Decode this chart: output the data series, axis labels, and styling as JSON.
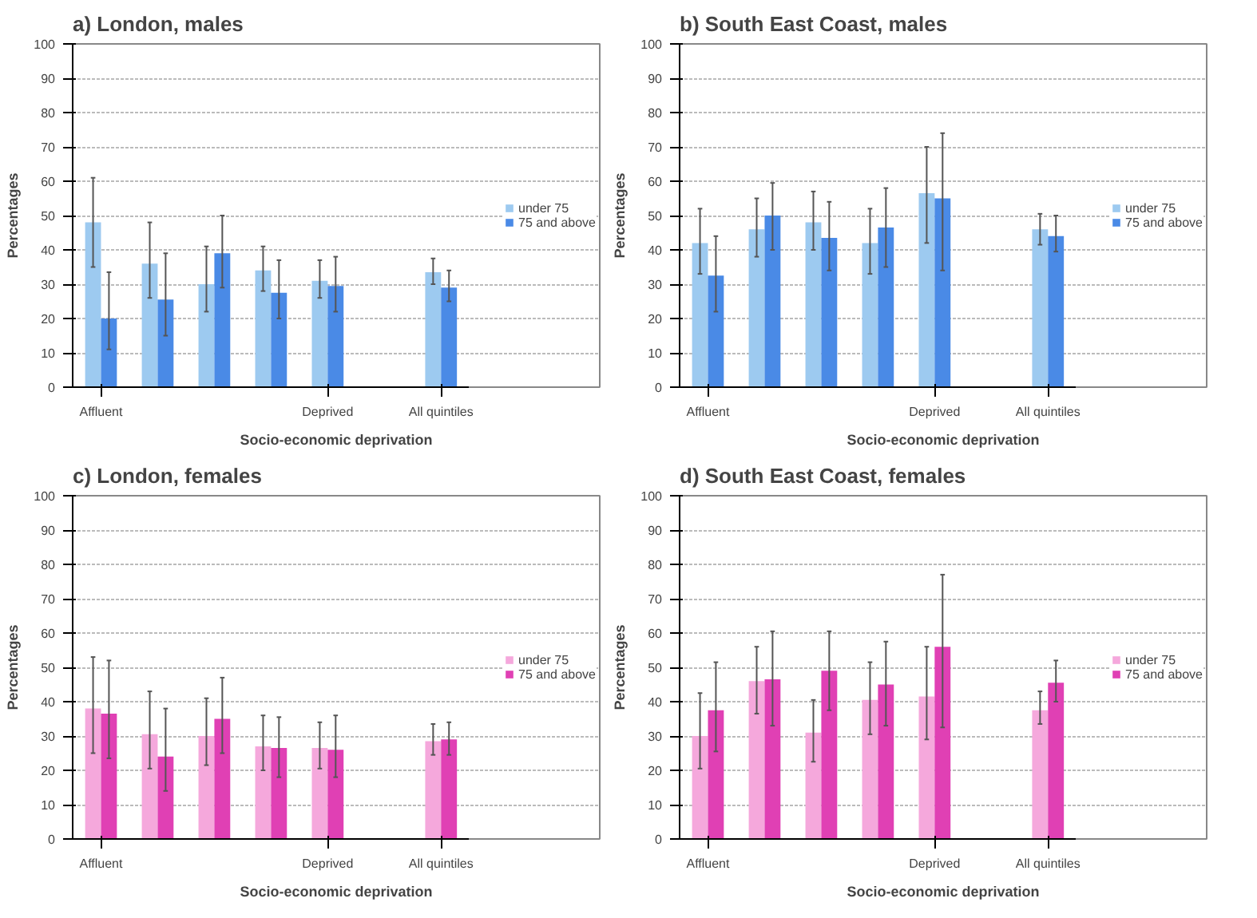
{
  "chart_data": [
    {
      "type": "bar",
      "title": "a) London, males",
      "xlabel": "Socio-economic deprivation",
      "ylabel": "Percentages",
      "categories": [
        "Affluent",
        null,
        null,
        null,
        "Deprived",
        null,
        "All quintiles"
      ],
      "ylim": [
        0,
        100
      ],
      "yticks": [
        0,
        10,
        20,
        30,
        40,
        50,
        60,
        70,
        80,
        90,
        100
      ],
      "grid": "y",
      "legend": "right",
      "series": [
        {
          "name": "under 75",
          "color": "#9dcaf0",
          "values": [
            48,
            36,
            30,
            34,
            31,
            null,
            33.5
          ],
          "errors": [
            [
              35,
              61
            ],
            [
              26,
              48
            ],
            [
              22,
              41
            ],
            [
              28,
              41
            ],
            [
              26,
              37
            ],
            null,
            [
              30,
              37.5
            ]
          ]
        },
        {
          "name": "75 and above",
          "color": "#4a8ae6",
          "values": [
            20,
            25.5,
            39,
            27.5,
            29.5,
            null,
            29
          ],
          "errors": [
            [
              11,
              33.5
            ],
            [
              15,
              39
            ],
            [
              29,
              50
            ],
            [
              20,
              37
            ],
            [
              22,
              38
            ],
            null,
            [
              25,
              34
            ]
          ]
        }
      ]
    },
    {
      "type": "bar",
      "title": "b) South East Coast, males",
      "xlabel": "Socio-economic deprivation",
      "ylabel": "Percentages",
      "categories": [
        "Affluent",
        null,
        null,
        null,
        "Deprived",
        null,
        "All quintiles"
      ],
      "ylim": [
        0,
        100
      ],
      "yticks": [
        0,
        10,
        20,
        30,
        40,
        50,
        60,
        70,
        80,
        90,
        100
      ],
      "grid": "y",
      "legend": "right",
      "series": [
        {
          "name": "under 75",
          "color": "#9dcaf0",
          "values": [
            42,
            46,
            48,
            42,
            56.5,
            null,
            46
          ],
          "errors": [
            [
              33,
              52
            ],
            [
              38,
              55
            ],
            [
              40,
              57
            ],
            [
              33,
              52
            ],
            [
              42,
              70
            ],
            null,
            [
              41.5,
              50.5
            ]
          ]
        },
        {
          "name": "75 and above",
          "color": "#4a8ae6",
          "values": [
            32.5,
            50,
            43.5,
            46.5,
            55,
            null,
            44
          ],
          "errors": [
            [
              22,
              44
            ],
            [
              40,
              59.5
            ],
            [
              34,
              54
            ],
            [
              35,
              58
            ],
            [
              34,
              74
            ],
            null,
            [
              39.5,
              50
            ]
          ]
        }
      ]
    },
    {
      "type": "bar",
      "title": "c) London, females",
      "xlabel": "Socio-economic deprivation",
      "ylabel": "Percentages",
      "categories": [
        "Affluent",
        null,
        null,
        null,
        "Deprived",
        null,
        "All quintiles"
      ],
      "ylim": [
        0,
        100
      ],
      "yticks": [
        0,
        10,
        20,
        30,
        40,
        50,
        60,
        70,
        80,
        90,
        100
      ],
      "grid": "y",
      "legend": "right",
      "series": [
        {
          "name": "under 75",
          "color": "#f5a8dc",
          "values": [
            38,
            30.5,
            30,
            27,
            26.5,
            null,
            28.5
          ],
          "errors": [
            [
              25,
              53
            ],
            [
              20.5,
              43
            ],
            [
              21.5,
              41
            ],
            [
              20,
              36
            ],
            [
              20.5,
              34
            ],
            null,
            [
              24.5,
              33.5
            ]
          ]
        },
        {
          "name": "75 and above",
          "color": "#e040b4",
          "values": [
            36.5,
            24,
            35,
            26.5,
            26,
            null,
            29
          ],
          "errors": [
            [
              23.5,
              52
            ],
            [
              14,
              38
            ],
            [
              25,
              47
            ],
            [
              18,
              35.5
            ],
            [
              18,
              36
            ],
            null,
            [
              24.5,
              34
            ]
          ]
        }
      ]
    },
    {
      "type": "bar",
      "title": "d) South East Coast, females",
      "xlabel": "Socio-economic deprivation",
      "ylabel": "Percentages",
      "categories": [
        "Affluent",
        null,
        null,
        null,
        "Deprived",
        null,
        "All quintiles"
      ],
      "ylim": [
        0,
        100
      ],
      "yticks": [
        0,
        10,
        20,
        30,
        40,
        50,
        60,
        70,
        80,
        90,
        100
      ],
      "grid": "y",
      "legend": "right",
      "series": [
        {
          "name": "under 75",
          "color": "#f5a8dc",
          "values": [
            30,
            46,
            31,
            40.5,
            41.5,
            null,
            37.5
          ],
          "errors": [
            [
              20.5,
              42.5
            ],
            [
              36.5,
              56
            ],
            [
              22.5,
              40.5
            ],
            [
              30.5,
              51.5
            ],
            [
              29,
              56
            ],
            null,
            [
              33.5,
              43
            ]
          ]
        },
        {
          "name": "75 and above",
          "color": "#e040b4",
          "values": [
            37.5,
            46.5,
            49,
            45,
            56,
            null,
            45.5
          ],
          "errors": [
            [
              25.5,
              51.5
            ],
            [
              33,
              60.5
            ],
            [
              37.5,
              60.5
            ],
            [
              33,
              57.5
            ],
            [
              32.5,
              77
            ],
            null,
            [
              40,
              52
            ]
          ]
        }
      ]
    }
  ]
}
